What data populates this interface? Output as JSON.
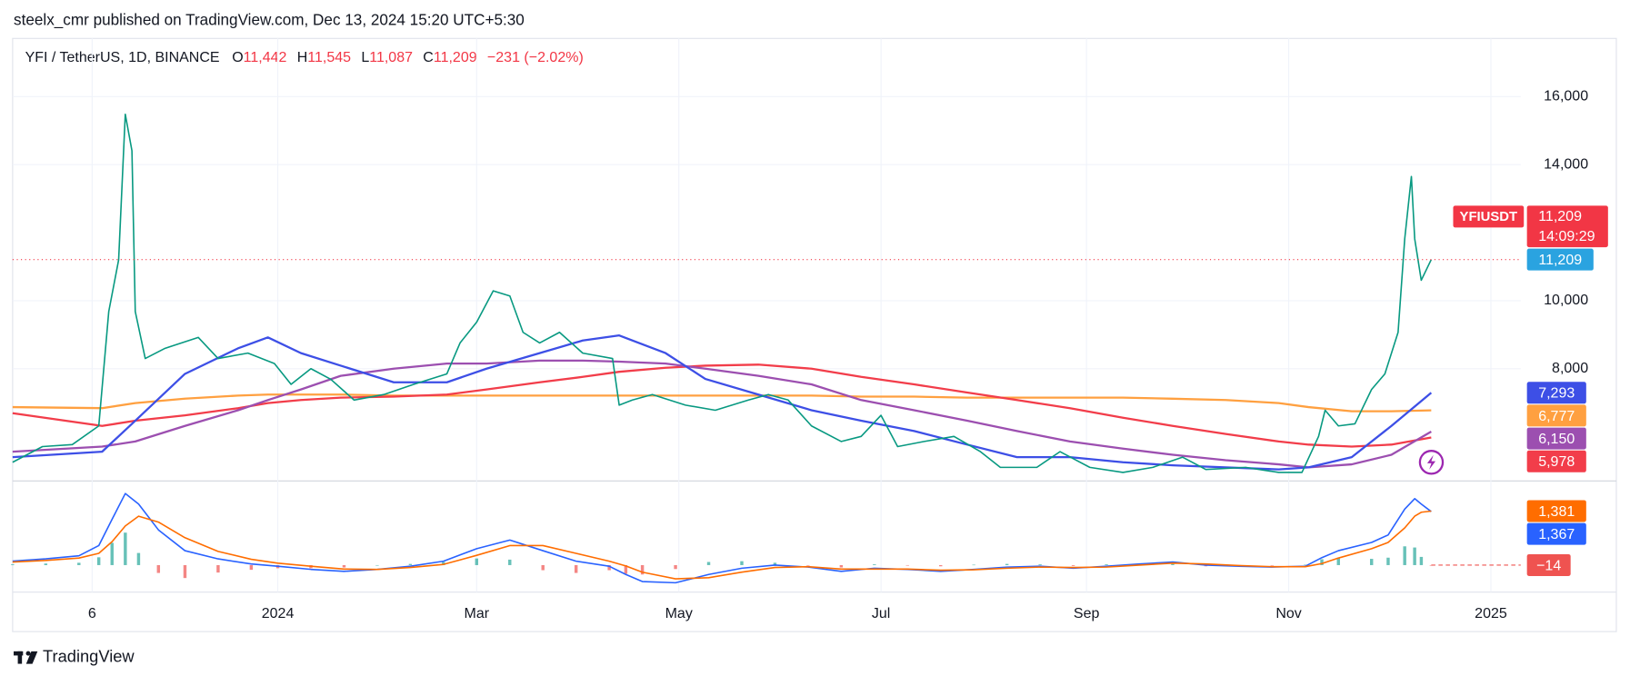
{
  "header": {
    "publisher": "steelx_cmr published on TradingView.com, Dec 13, 2024 15:20 UTC+5:30",
    "footer": "TradingView"
  },
  "chart_data": [
    {
      "type": "line",
      "symbol": "YFI / TetherUS, 1D, BINANCE",
      "ohlc": [
        {
          "key": "O",
          "value": "11,442"
        },
        {
          "key": "H",
          "value": "11,545"
        },
        {
          "key": "L",
          "value": "11,087"
        },
        {
          "key": "C",
          "value": "11,209"
        }
      ],
      "change": "−231 (−2.02%)",
      "symbol_tag": {
        "name": "YFIUSDT",
        "price": "11,209",
        "countdown": "14:09:29"
      },
      "xlim": [
        -80,
        375
      ],
      "xticks": [
        {
          "value": -56,
          "label": "6"
        },
        {
          "value": 0,
          "label": "2024"
        },
        {
          "value": 60,
          "label": "Mar"
        },
        {
          "value": 121,
          "label": "May"
        },
        {
          "value": 182,
          "label": "Jul"
        },
        {
          "value": 244,
          "label": "Sep"
        },
        {
          "value": 305,
          "label": "Nov"
        },
        {
          "value": 366,
          "label": "2025"
        }
      ],
      "ylim": [
        4700,
        17710
      ],
      "yticks": [
        {
          "value": 8000,
          "label": "8,000"
        },
        {
          "value": 10000,
          "label": "10,000"
        },
        {
          "value": 14000,
          "label": "14,000"
        },
        {
          "value": 16000,
          "label": "16,000"
        }
      ],
      "grid": true,
      "series": [
        {
          "color": "#089981",
          "label_color": "#2aa3e0",
          "last_label": "11,209",
          "x": [
            -80,
            -71,
            -62,
            -54,
            -51,
            -48,
            -46,
            -44,
            -43,
            -40,
            -34,
            -24,
            -18,
            -9,
            -1,
            4,
            10,
            16,
            23,
            32,
            41,
            51,
            55,
            60,
            65,
            70,
            74,
            79,
            85,
            92,
            101,
            103,
            107,
            113,
            123,
            132,
            142,
            148,
            154,
            161,
            170,
            176,
            182,
            187,
            195,
            204,
            212,
            218,
            229,
            236,
            245,
            255,
            264,
            273,
            280,
            292,
            302,
            309,
            314,
            316,
            320,
            325,
            330,
            334,
            338,
            340,
            342,
            343,
            345,
            348
          ],
          "values": [
            5250,
            5710,
            5770,
            6320,
            9680,
            11200,
            15480,
            14410,
            9680,
            8300,
            8600,
            8920,
            8300,
            8460,
            8150,
            7540,
            8000,
            7690,
            7080,
            7240,
            7540,
            7850,
            8760,
            9370,
            10290,
            10140,
            9070,
            8760,
            9070,
            8460,
            8300,
            6930,
            7080,
            7240,
            6930,
            6780,
            7080,
            7240,
            7080,
            6320,
            5860,
            6010,
            6630,
            5710,
            5860,
            6010,
            5560,
            5100,
            5100,
            5560,
            5100,
            4950,
            5100,
            5400,
            5040,
            5100,
            4950,
            4950,
            6010,
            6780,
            6320,
            6380,
            7390,
            7850,
            9070,
            11820,
            13650,
            11820,
            10600,
            11209
          ]
        },
        {
          "color": "#3d4fe6",
          "last_label": "7,293",
          "x": [
            -80,
            -53,
            -43,
            -28,
            -12,
            -3,
            7,
            19,
            35,
            51,
            63,
            79,
            92,
            103,
            117,
            129,
            145,
            161,
            176,
            192,
            208,
            223,
            239,
            255,
            270,
            286,
            302,
            311,
            324,
            336,
            348
          ],
          "values": [
            5400,
            5560,
            6470,
            7850,
            8600,
            8920,
            8460,
            8090,
            7600,
            7600,
            8000,
            8460,
            8830,
            8980,
            8460,
            7700,
            7240,
            6780,
            6470,
            6170,
            5770,
            5400,
            5400,
            5250,
            5160,
            5100,
            5040,
            5100,
            5400,
            6320,
            7293
          ]
        },
        {
          "color": "#9c4fb0",
          "last_label": "6,150",
          "x": [
            -80,
            -53,
            -43,
            -28,
            -12,
            -3,
            7,
            19,
            35,
            51,
            63,
            79,
            92,
            103,
            117,
            129,
            145,
            161,
            176,
            192,
            208,
            223,
            239,
            255,
            270,
            286,
            302,
            311,
            324,
            336,
            348
          ],
          "values": [
            5560,
            5710,
            5860,
            6320,
            6780,
            7080,
            7390,
            7790,
            8000,
            8150,
            8150,
            8240,
            8240,
            8210,
            8150,
            8000,
            7790,
            7540,
            7080,
            6780,
            6470,
            6170,
            5860,
            5650,
            5470,
            5310,
            5190,
            5100,
            5190,
            5470,
            6150
          ]
        },
        {
          "color": "#f23d4a",
          "last_label": "5,978",
          "x": [
            -80,
            -53,
            -43,
            -28,
            -12,
            -3,
            7,
            19,
            35,
            51,
            63,
            79,
            92,
            103,
            117,
            129,
            145,
            161,
            176,
            192,
            208,
            223,
            239,
            255,
            270,
            286,
            302,
            311,
            324,
            336,
            348
          ],
          "values": [
            6690,
            6320,
            6470,
            6630,
            6840,
            6990,
            7080,
            7150,
            7180,
            7240,
            7390,
            7600,
            7760,
            7910,
            8030,
            8090,
            8120,
            8000,
            7760,
            7540,
            7300,
            7080,
            6840,
            6560,
            6320,
            6080,
            5860,
            5770,
            5710,
            5770,
            5978
          ]
        },
        {
          "color": "#ffa040",
          "last_label": "6,777",
          "x": [
            -80,
            -53,
            -43,
            -28,
            -12,
            -3,
            7,
            19,
            35,
            51,
            63,
            79,
            92,
            103,
            117,
            129,
            145,
            161,
            176,
            192,
            208,
            223,
            239,
            255,
            270,
            286,
            302,
            311,
            324,
            336,
            348
          ],
          "values": [
            6870,
            6840,
            6990,
            7120,
            7210,
            7240,
            7240,
            7240,
            7210,
            7210,
            7210,
            7210,
            7210,
            7210,
            7210,
            7210,
            7210,
            7210,
            7180,
            7180,
            7150,
            7150,
            7150,
            7150,
            7120,
            7080,
            6990,
            6870,
            6750,
            6750,
            6777
          ]
        }
      ]
    },
    {
      "type": "macd",
      "ylim": [
        -690,
        2150
      ],
      "series": [
        {
          "color": "#2962ff",
          "last_label": "1,367",
          "x": [
            -80,
            -70,
            -60,
            -54,
            -50,
            -46,
            -42,
            -36,
            -28,
            -18,
            -8,
            0,
            10,
            20,
            30,
            40,
            50,
            60,
            70,
            80,
            90,
            100,
            105,
            110,
            120,
            130,
            140,
            150,
            160,
            170,
            180,
            190,
            200,
            210,
            220,
            230,
            240,
            250,
            260,
            270,
            280,
            290,
            300,
            310,
            315,
            320,
            330,
            335,
            340,
            343,
            345,
            348
          ],
          "values": [
            100,
            160,
            240,
            500,
            1170,
            1830,
            1560,
            900,
            370,
            160,
            30,
            -30,
            -110,
            -160,
            -110,
            -30,
            100,
            420,
            640,
            370,
            100,
            -30,
            -240,
            -420,
            -450,
            -240,
            -80,
            0,
            -50,
            -160,
            -80,
            -110,
            -160,
            -110,
            -50,
            -30,
            -80,
            -30,
            30,
            80,
            0,
            -30,
            -50,
            -30,
            190,
            370,
            580,
            770,
            1430,
            1700,
            1560,
            1367
          ]
        },
        {
          "color": "#ff6d00",
          "last_label": "1,381",
          "x": [
            -80,
            -70,
            -60,
            -54,
            -50,
            -46,
            -42,
            -36,
            -28,
            -18,
            -8,
            0,
            10,
            20,
            30,
            40,
            50,
            60,
            70,
            80,
            90,
            100,
            105,
            110,
            120,
            130,
            140,
            150,
            160,
            170,
            180,
            190,
            200,
            210,
            220,
            230,
            240,
            250,
            260,
            270,
            280,
            290,
            300,
            310,
            315,
            320,
            330,
            335,
            340,
            343,
            345,
            348
          ],
          "values": [
            80,
            120,
            180,
            300,
            600,
            1000,
            1250,
            1100,
            700,
            350,
            150,
            50,
            -30,
            -100,
            -110,
            -60,
            20,
            250,
            500,
            500,
            300,
            100,
            -20,
            -180,
            -350,
            -320,
            -180,
            -60,
            -40,
            -100,
            -100,
            -100,
            -130,
            -120,
            -80,
            -50,
            -60,
            -50,
            0,
            50,
            30,
            -10,
            -40,
            -40,
            40,
            180,
            420,
            580,
            950,
            1250,
            1350,
            1381
          ]
        }
      ],
      "histogram": {
        "up_color": "#26a69a",
        "down_color": "#ef5350",
        "last_label": "−14",
        "x": [
          -80,
          -70,
          -60,
          -54,
          -50,
          -46,
          -42,
          -36,
          -28,
          -18,
          -8,
          0,
          10,
          20,
          30,
          40,
          50,
          60,
          70,
          80,
          90,
          100,
          105,
          110,
          120,
          130,
          140,
          150,
          160,
          170,
          180,
          190,
          200,
          210,
          220,
          230,
          240,
          250,
          260,
          270,
          280,
          290,
          300,
          310,
          315,
          320,
          330,
          335,
          340,
          343,
          345,
          348
        ],
        "values": [
          20,
          40,
          60,
          200,
          570,
          830,
          310,
          -200,
          -330,
          -190,
          -120,
          -80,
          -80,
          -60,
          0,
          30,
          80,
          170,
          140,
          -130,
          -200,
          -130,
          -220,
          -240,
          -100,
          80,
          100,
          60,
          -10,
          -60,
          20,
          -10,
          -30,
          10,
          30,
          20,
          -20,
          20,
          30,
          30,
          -30,
          -20,
          -10,
          10,
          150,
          190,
          160,
          190,
          480,
          450,
          210,
          -14
        ]
      }
    }
  ]
}
